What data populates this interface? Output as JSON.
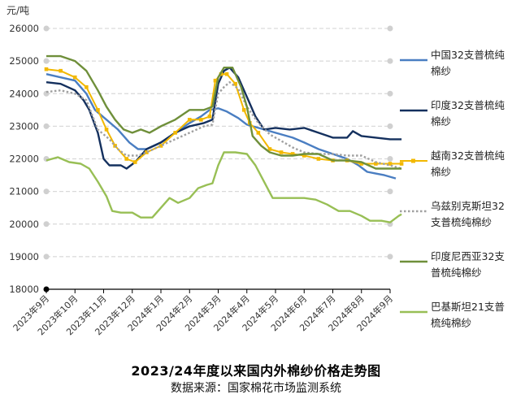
{
  "chart_data": {
    "type": "line",
    "title": "2023/24年度以来国内外棉纱价格走势图",
    "source": "数据来源：国家棉花市场监测系统",
    "ylabel": "元/吨",
    "ylim": [
      18000,
      26000
    ],
    "yticks": [
      18000,
      19000,
      20000,
      21000,
      22000,
      23000,
      24000,
      25000,
      26000
    ],
    "xlim": [
      0,
      12
    ],
    "xticks": [
      {
        "label": "2023年9月",
        "pos": 0
      },
      {
        "label": "2023年10月",
        "pos": 1
      },
      {
        "label": "2023年11月",
        "pos": 2
      },
      {
        "label": "2023年12月",
        "pos": 3
      },
      {
        "label": "2024年1月",
        "pos": 4
      },
      {
        "label": "2024年2月",
        "pos": 5
      },
      {
        "label": "2024年3月",
        "pos": 6
      },
      {
        "label": "2024年4月",
        "pos": 7
      },
      {
        "label": "2024年5月",
        "pos": 8
      },
      {
        "label": "2024年6月",
        "pos": 9
      },
      {
        "label": "2024年7月",
        "pos": 10
      },
      {
        "label": "2024年8月",
        "pos": 11
      },
      {
        "label": "2024年9月",
        "pos": 12
      }
    ],
    "series": [
      {
        "name": "中国32支普梳纯棉纱",
        "color": "#4a7ec2",
        "style": "solid",
        "points": [
          [
            0,
            24600
          ],
          [
            0.5,
            24500
          ],
          [
            1.0,
            24400
          ],
          [
            1.4,
            24000
          ],
          [
            1.7,
            23500
          ],
          [
            2.1,
            23200
          ],
          [
            2.5,
            22900
          ],
          [
            2.9,
            22500
          ],
          [
            3.2,
            22300
          ],
          [
            3.5,
            22300
          ],
          [
            4.0,
            22500
          ],
          [
            4.5,
            22800
          ],
          [
            5.0,
            23100
          ],
          [
            5.4,
            23300
          ],
          [
            5.7,
            23500
          ],
          [
            6.0,
            23550
          ],
          [
            6.3,
            23450
          ],
          [
            6.7,
            23250
          ],
          [
            7.0,
            23050
          ],
          [
            7.4,
            22950
          ],
          [
            7.8,
            22850
          ],
          [
            8.2,
            22750
          ],
          [
            8.6,
            22650
          ],
          [
            9.0,
            22500
          ],
          [
            9.5,
            22300
          ],
          [
            10.0,
            22150
          ],
          [
            10.5,
            22000
          ],
          [
            10.9,
            21800
          ],
          [
            11.2,
            21600
          ],
          [
            11.5,
            21550
          ],
          [
            11.8,
            21500
          ],
          [
            12.2,
            21400
          ]
        ]
      },
      {
        "name": "印度32支普梳纯棉纱",
        "color": "#14305e",
        "style": "solid",
        "points": [
          [
            0,
            24350
          ],
          [
            0.5,
            24300
          ],
          [
            1.0,
            24100
          ],
          [
            1.3,
            23800
          ],
          [
            1.5,
            23500
          ],
          [
            1.8,
            22800
          ],
          [
            2.0,
            22000
          ],
          [
            2.2,
            21800
          ],
          [
            2.6,
            21800
          ],
          [
            2.8,
            21700
          ],
          [
            3.1,
            21900
          ],
          [
            3.5,
            22300
          ],
          [
            4.0,
            22500
          ],
          [
            4.5,
            22800
          ],
          [
            5.0,
            23000
          ],
          [
            5.5,
            23100
          ],
          [
            5.8,
            23200
          ],
          [
            6.0,
            24300
          ],
          [
            6.2,
            24700
          ],
          [
            6.4,
            24800
          ],
          [
            6.7,
            24500
          ],
          [
            7.0,
            23900
          ],
          [
            7.3,
            23300
          ],
          [
            7.6,
            22900
          ],
          [
            8.0,
            22950
          ],
          [
            8.5,
            22900
          ],
          [
            9.0,
            22950
          ],
          [
            9.5,
            22800
          ],
          [
            10.0,
            22650
          ],
          [
            10.5,
            22650
          ],
          [
            10.7,
            22850
          ],
          [
            11.0,
            22700
          ],
          [
            11.5,
            22650
          ],
          [
            12.0,
            22600
          ],
          [
            12.4,
            22600
          ]
        ]
      },
      {
        "name": "越南32支普梳纯棉纱",
        "color": "#f2b800",
        "style": "markers",
        "points": [
          [
            0,
            24750
          ],
          [
            0.5,
            24700
          ],
          [
            1.0,
            24500
          ],
          [
            1.4,
            24200
          ],
          [
            1.8,
            23500
          ],
          [
            2.1,
            22900
          ],
          [
            2.4,
            22400
          ],
          [
            2.8,
            22000
          ],
          [
            3.1,
            21900
          ],
          [
            3.5,
            22200
          ],
          [
            4.0,
            22400
          ],
          [
            4.5,
            22800
          ],
          [
            5.0,
            23200
          ],
          [
            5.4,
            23200
          ],
          [
            5.7,
            23300
          ],
          [
            5.9,
            24400
          ],
          [
            6.1,
            24600
          ],
          [
            6.3,
            24600
          ],
          [
            6.6,
            24300
          ],
          [
            6.9,
            23500
          ],
          [
            7.1,
            23100
          ],
          [
            7.4,
            22800
          ],
          [
            7.8,
            22300
          ],
          [
            8.2,
            22200
          ],
          [
            8.6,
            22150
          ],
          [
            9.0,
            22100
          ],
          [
            9.5,
            22000
          ],
          [
            10.0,
            21950
          ],
          [
            10.5,
            21950
          ],
          [
            11.0,
            21850
          ],
          [
            11.5,
            21850
          ],
          [
            12.0,
            21850
          ],
          [
            12.4,
            21850
          ]
        ]
      },
      {
        "name": "乌兹别克斯坦32支普梳纯棉纱",
        "color": "#a0a0a0",
        "style": "dotted",
        "points": [
          [
            0,
            24050
          ],
          [
            0.5,
            24100
          ],
          [
            1.0,
            24000
          ],
          [
            1.4,
            23800
          ],
          [
            1.8,
            22900
          ],
          [
            2.2,
            22600
          ],
          [
            2.5,
            22300
          ],
          [
            2.8,
            22100
          ],
          [
            3.2,
            22100
          ],
          [
            3.5,
            22200
          ],
          [
            4.0,
            22400
          ],
          [
            4.5,
            22600
          ],
          [
            5.0,
            22800
          ],
          [
            5.5,
            23000
          ],
          [
            5.8,
            23050
          ],
          [
            6.0,
            24000
          ],
          [
            6.2,
            24200
          ],
          [
            6.4,
            24350
          ],
          [
            6.7,
            24150
          ],
          [
            7.0,
            23600
          ],
          [
            7.4,
            23100
          ],
          [
            7.8,
            22750
          ],
          [
            8.2,
            22550
          ],
          [
            8.6,
            22350
          ],
          [
            9.0,
            22200
          ],
          [
            9.5,
            22150
          ],
          [
            10.0,
            22150
          ],
          [
            10.5,
            22100
          ],
          [
            11.0,
            22100
          ],
          [
            11.5,
            21900
          ],
          [
            12.0,
            21800
          ],
          [
            12.4,
            21700
          ]
        ]
      },
      {
        "name": "印度尼西亚32支普梳纯棉纱",
        "color": "#6f8f3a",
        "style": "solid",
        "points": [
          [
            0,
            25150
          ],
          [
            0.5,
            25150
          ],
          [
            1.0,
            25000
          ],
          [
            1.4,
            24700
          ],
          [
            1.8,
            24100
          ],
          [
            2.1,
            23600
          ],
          [
            2.4,
            23200
          ],
          [
            2.7,
            22900
          ],
          [
            3.0,
            22800
          ],
          [
            3.3,
            22900
          ],
          [
            3.6,
            22800
          ],
          [
            4.0,
            23000
          ],
          [
            4.5,
            23200
          ],
          [
            5.0,
            23500
          ],
          [
            5.5,
            23500
          ],
          [
            5.8,
            23600
          ],
          [
            6.0,
            24500
          ],
          [
            6.2,
            24800
          ],
          [
            6.5,
            24800
          ],
          [
            6.8,
            24200
          ],
          [
            7.0,
            23600
          ],
          [
            7.2,
            22700
          ],
          [
            7.5,
            22400
          ],
          [
            7.8,
            22200
          ],
          [
            8.2,
            22100
          ],
          [
            8.6,
            22100
          ],
          [
            9.0,
            22150
          ],
          [
            9.5,
            22150
          ],
          [
            10.0,
            21950
          ],
          [
            10.5,
            21950
          ],
          [
            11.0,
            21900
          ],
          [
            11.5,
            21700
          ],
          [
            12.0,
            21700
          ],
          [
            12.4,
            21700
          ]
        ]
      },
      {
        "name": "巴基斯坦21支普梳纯棉纱",
        "color": "#98bf55",
        "style": "solid",
        "points": [
          [
            0,
            21950
          ],
          [
            0.4,
            22050
          ],
          [
            0.8,
            21900
          ],
          [
            1.2,
            21850
          ],
          [
            1.5,
            21700
          ],
          [
            1.8,
            21300
          ],
          [
            2.1,
            20850
          ],
          [
            2.3,
            20400
          ],
          [
            2.6,
            20350
          ],
          [
            3.0,
            20350
          ],
          [
            3.3,
            20200
          ],
          [
            3.7,
            20200
          ],
          [
            4.0,
            20500
          ],
          [
            4.3,
            20800
          ],
          [
            4.6,
            20650
          ],
          [
            5.0,
            20800
          ],
          [
            5.3,
            21100
          ],
          [
            5.6,
            21200
          ],
          [
            5.8,
            21250
          ],
          [
            6.0,
            21800
          ],
          [
            6.2,
            22200
          ],
          [
            6.6,
            22200
          ],
          [
            7.0,
            22150
          ],
          [
            7.3,
            21800
          ],
          [
            7.6,
            21300
          ],
          [
            7.9,
            20800
          ],
          [
            8.3,
            20800
          ],
          [
            8.7,
            20800
          ],
          [
            9.0,
            20800
          ],
          [
            9.4,
            20750
          ],
          [
            9.8,
            20600
          ],
          [
            10.2,
            20400
          ],
          [
            10.6,
            20400
          ],
          [
            11.0,
            20250
          ],
          [
            11.3,
            20100
          ],
          [
            11.7,
            20100
          ],
          [
            12.0,
            20050
          ],
          [
            12.3,
            20250
          ],
          [
            12.4,
            20300
          ]
        ]
      }
    ]
  }
}
